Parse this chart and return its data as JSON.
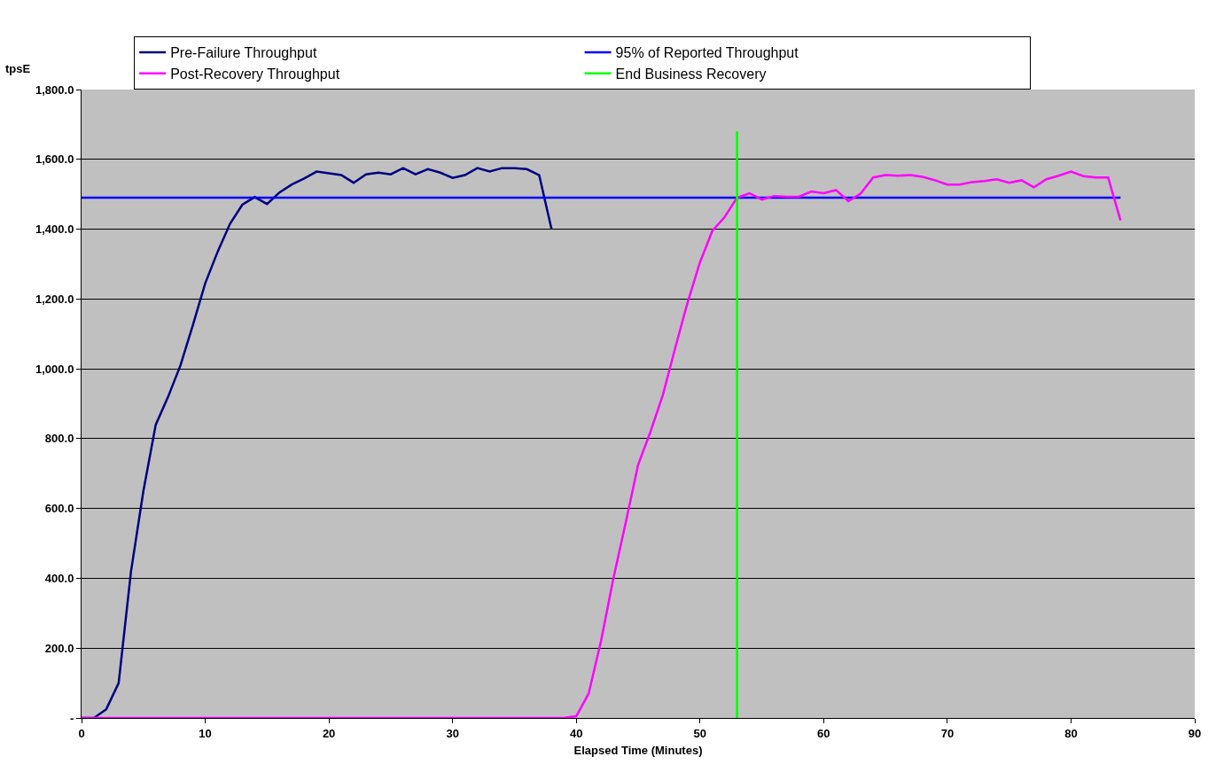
{
  "chart_data": {
    "type": "line",
    "xlabel": "Elapsed Time (Minutes)",
    "ylabel": "tpsE",
    "xlim": [
      0,
      90
    ],
    "xticks": [
      0,
      10,
      20,
      30,
      40,
      50,
      60,
      70,
      80,
      90
    ],
    "ylim": [
      0,
      1800
    ],
    "yticks": [
      {
        "value": 0,
        "label": "-"
      },
      {
        "value": 200,
        "label": "200.0"
      },
      {
        "value": 400,
        "label": "400.0"
      },
      {
        "value": 600,
        "label": "600.0"
      },
      {
        "value": 800,
        "label": "800.0"
      },
      {
        "value": 1000,
        "label": "1,000.0"
      },
      {
        "value": 1200,
        "label": "1,200.0"
      },
      {
        "value": 1400,
        "label": "1,400.0"
      },
      {
        "value": 1600,
        "label": "1,600.0"
      },
      {
        "value": 1800,
        "label": "1,800.0"
      }
    ],
    "grid": "y",
    "legend": "top",
    "marker": "none",
    "line_style": "solid",
    "series": [
      {
        "name": "Pre-Failure Throughput",
        "color": "#000080",
        "x": [
          0,
          1,
          2,
          3,
          4,
          5,
          6,
          7,
          8,
          9,
          10,
          11,
          12,
          13,
          14,
          15,
          16,
          17,
          18,
          19,
          20,
          21,
          22,
          23,
          24,
          25,
          26,
          27,
          28,
          29,
          30,
          31,
          32,
          33,
          34,
          35,
          36,
          37,
          38
        ],
        "values": [
          0,
          0,
          25,
          100,
          420,
          650,
          840,
          920,
          1010,
          1125,
          1245,
          1335,
          1415,
          1470,
          1492,
          1472,
          1505,
          1528,
          1545,
          1565,
          1560,
          1555,
          1533,
          1557,
          1562,
          1557,
          1575,
          1557,
          1572,
          1562,
          1547,
          1555,
          1575,
          1565,
          1575,
          1575,
          1572,
          1555,
          1400
        ]
      },
      {
        "name": "95% of Reported Throughput",
        "color": "#0000ff",
        "x": [
          0,
          84
        ],
        "values": [
          1490,
          1490
        ]
      },
      {
        "name": "Post-Recovery Throughput",
        "color": "#ff00ff",
        "x": [
          0,
          10,
          20,
          30,
          39,
          40,
          41,
          42,
          43,
          44,
          45,
          46,
          47,
          48,
          49,
          50,
          51,
          52,
          53,
          54,
          55,
          56,
          57,
          58,
          59,
          60,
          61,
          62,
          63,
          64,
          65,
          66,
          67,
          68,
          69,
          70,
          71,
          72,
          73,
          74,
          75,
          76,
          77,
          78,
          79,
          80,
          81,
          82,
          83,
          84
        ],
        "values": [
          0,
          0,
          0,
          0,
          0,
          5,
          70,
          220,
          400,
          560,
          725,
          820,
          925,
          1060,
          1190,
          1305,
          1395,
          1435,
          1490,
          1503,
          1485,
          1495,
          1493,
          1493,
          1508,
          1503,
          1512,
          1480,
          1502,
          1548,
          1555,
          1553,
          1555,
          1550,
          1540,
          1528,
          1528,
          1535,
          1538,
          1543,
          1533,
          1540,
          1520,
          1543,
          1553,
          1565,
          1552,
          1548,
          1548,
          1425
        ]
      },
      {
        "name": "End Business Recovery",
        "color": "#00ff00",
        "x": [
          53,
          53
        ],
        "values": [
          0,
          1680
        ]
      }
    ]
  }
}
